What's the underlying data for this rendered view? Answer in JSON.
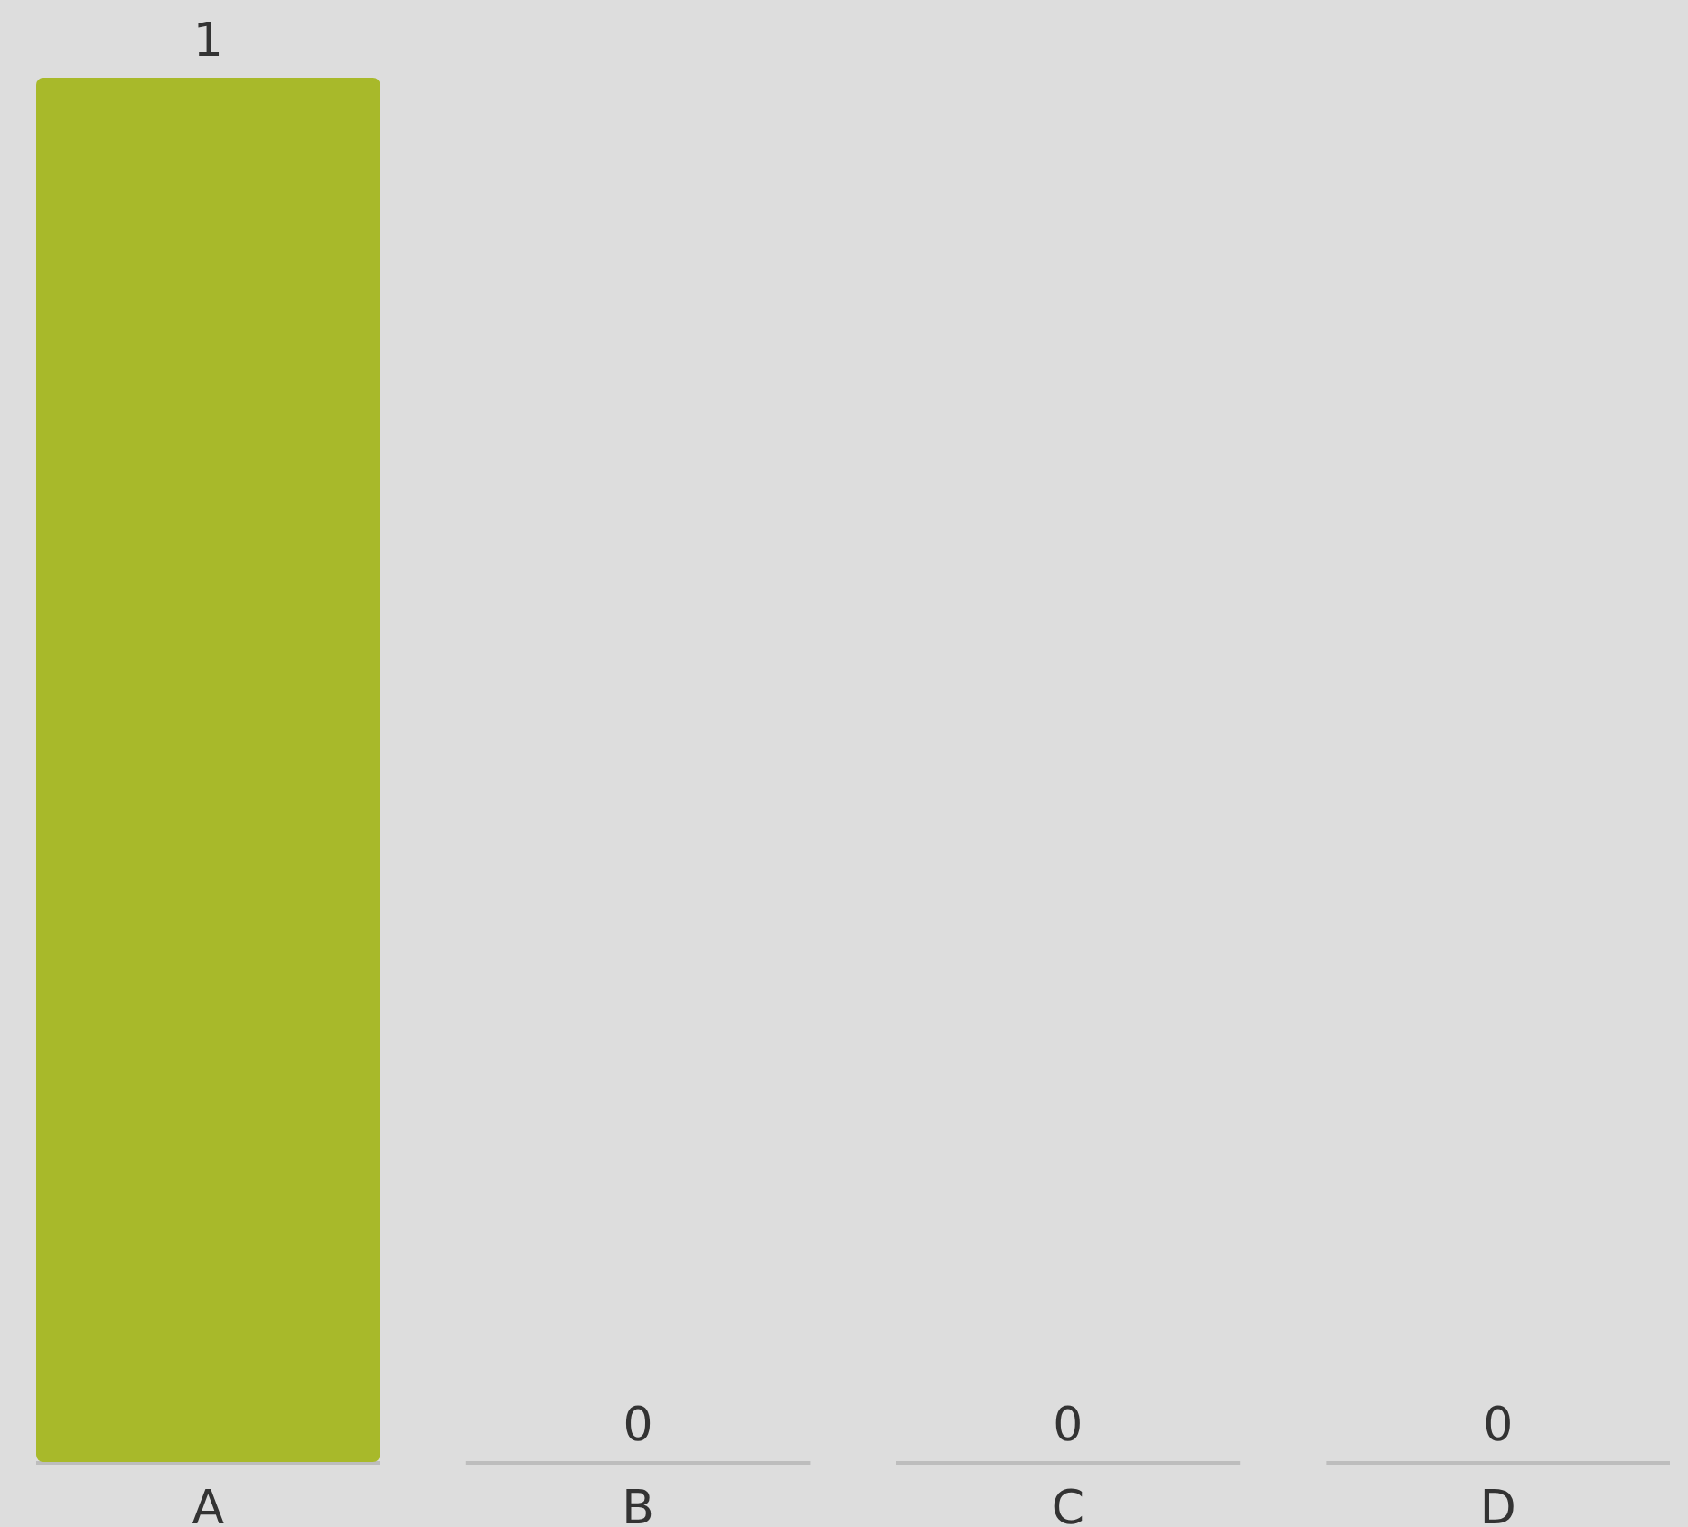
{
  "chart_data": {
    "type": "bar",
    "categories": [
      "A",
      "B",
      "C",
      "D"
    ],
    "values": [
      1,
      0,
      0,
      0
    ],
    "color": "#a8b92a",
    "data_labels": true
  }
}
